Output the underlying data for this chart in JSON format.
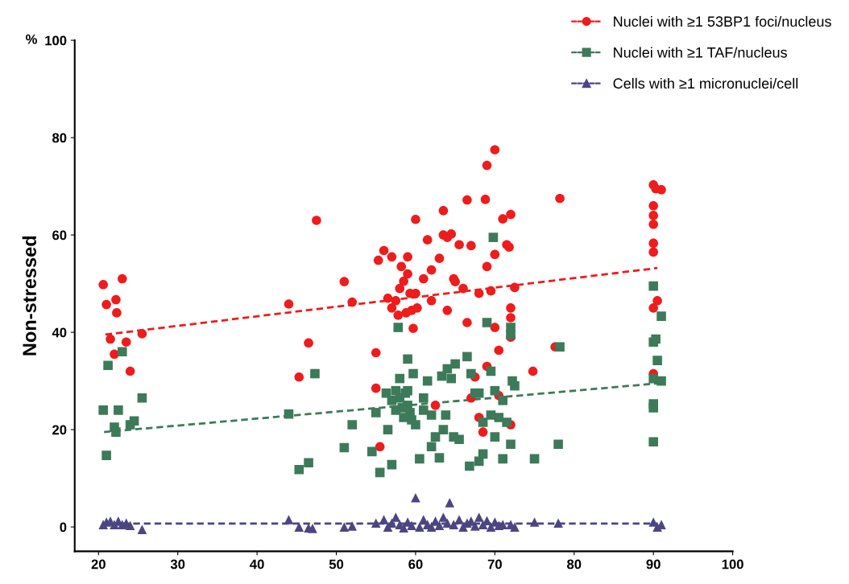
{
  "chart_data": {
    "type": "scatter",
    "ylabel": "Non-stressed",
    "annotations": [
      "%"
    ],
    "xlim": [
      17,
      100
    ],
    "xticks": [
      20,
      30,
      40,
      50,
      60,
      70,
      80,
      90,
      100
    ],
    "ylim": [
      -5,
      100
    ],
    "yticks": [
      0,
      20,
      40,
      60,
      80,
      100
    ],
    "grid": false,
    "legend": "top right",
    "series": [
      {
        "name": "Nuclei with ≥1 53BP1 foci/nucleus",
        "color": "#ee1c1c",
        "marker": "circle",
        "line_style": "dashed",
        "x": [
          20.6,
          21,
          21.5,
          22,
          22.2,
          22.3,
          23,
          23.5,
          24,
          25.5,
          44,
          45.3,
          46.5,
          47.5,
          51,
          52,
          55,
          55,
          55.3,
          55.5,
          56,
          56.5,
          57,
          57,
          57.5,
          57.8,
          58,
          58.2,
          58.5,
          58.8,
          59,
          59,
          59.3,
          59.5,
          59.7,
          60,
          60,
          60.2,
          61,
          61.5,
          62,
          62,
          62.5,
          63,
          63.5,
          63.5,
          64,
          64,
          64.5,
          64.8,
          65,
          65.5,
          66,
          66.5,
          66.5,
          67,
          67,
          67.5,
          68,
          68,
          68.5,
          68.8,
          69,
          69,
          69,
          69.5,
          70,
          70,
          70,
          70.5,
          70.5,
          71,
          71.5,
          71.8,
          72,
          72,
          72,
          72,
          72,
          72.5,
          74.8,
          77.6,
          78.2,
          90,
          90.3,
          90,
          90,
          90,
          90,
          90,
          90.5,
          90,
          90,
          91
        ],
        "values": [
          49.8,
          45.7,
          38.6,
          35.5,
          46.7,
          44,
          51,
          38,
          32,
          39.7,
          45.8,
          30.8,
          37.8,
          63,
          50.4,
          46.2,
          35.8,
          28.5,
          54.8,
          16.5,
          56.8,
          47,
          55.5,
          45,
          46.5,
          43.5,
          49,
          53.5,
          50.5,
          44,
          55.5,
          52,
          48,
          44.5,
          40.8,
          63.2,
          48,
          45,
          51,
          59,
          46.5,
          52.8,
          25,
          55.2,
          65,
          60,
          59.5,
          44.5,
          60.2,
          51,
          50.4,
          58,
          49,
          67.2,
          42,
          57.8,
          26.5,
          30.8,
          48,
          22.5,
          19.5,
          67.3,
          74.3,
          53.5,
          33,
          48.5,
          77.5,
          56,
          41,
          36.3,
          27,
          63.3,
          58,
          57.5,
          64.2,
          45,
          43,
          39,
          21,
          49.2,
          32,
          37,
          67.5,
          70.3,
          69.5,
          66,
          64,
          62.2,
          58.3,
          56.5,
          46.5,
          45,
          31.5,
          69.3
        ]
      },
      {
        "name": "Nuclei with ≥1 TAF/nucleus",
        "color": "#3d7a5a",
        "marker": "square",
        "line_style": "dashed",
        "x": [
          20.6,
          21,
          21.2,
          22,
          22.2,
          22.5,
          23,
          24,
          24.5,
          25.5,
          44,
          45.3,
          46.5,
          47.3,
          51,
          52,
          54.5,
          55,
          55.5,
          56.3,
          56.5,
          57,
          57,
          57.5,
          57.5,
          57.8,
          58,
          58,
          58.3,
          58.5,
          58.7,
          59,
          59,
          59,
          59.3,
          59.5,
          59.7,
          60,
          60.5,
          61,
          61,
          61.5,
          62,
          62,
          62.5,
          63,
          63.3,
          63.5,
          63.8,
          64,
          64.5,
          64.8,
          65,
          65.5,
          66.5,
          66.8,
          67,
          67.5,
          68,
          68,
          68.5,
          68.5,
          69,
          69.5,
          69.5,
          69.8,
          70,
          70,
          70.5,
          71,
          71,
          71.5,
          72,
          72,
          72,
          72.2,
          72.5,
          75,
          78.2,
          78,
          90,
          90,
          90.3,
          90.5,
          90,
          91,
          90,
          90,
          90,
          91
        ],
        "values": [
          24,
          14.7,
          33.2,
          20.5,
          19.5,
          24,
          36,
          21,
          21.8,
          26.5,
          23.2,
          11.8,
          13.2,
          31.5,
          16.3,
          21,
          15.5,
          23.5,
          11.2,
          27.5,
          20,
          26,
          12.8,
          28,
          24,
          41,
          30.5,
          26.5,
          24.5,
          22.5,
          27.5,
          34.5,
          28,
          25,
          23.5,
          22,
          31.5,
          21,
          14,
          26.5,
          24,
          30,
          16.5,
          23,
          18.5,
          14.2,
          31,
          20,
          23,
          32.5,
          30.5,
          18.5,
          33.5,
          18,
          35,
          12.5,
          31.5,
          27.5,
          27.5,
          13.5,
          21.5,
          15,
          42,
          32,
          23,
          59.5,
          28,
          18.5,
          22.5,
          14,
          26,
          21.5,
          41,
          39.5,
          17,
          30,
          29,
          14,
          37,
          17,
          49.5,
          38,
          38.6,
          34.2,
          30.5,
          43.3,
          25.3,
          24.5,
          17.5,
          30
        ]
      },
      {
        "name": "Cells with ≥1 micronuclei/cell",
        "color": "#4b4682",
        "marker": "triangle",
        "line_style": "dashed",
        "x": [
          20.6,
          21,
          21.5,
          22,
          22.5,
          23,
          23.5,
          24,
          25.5,
          44,
          45.3,
          46.5,
          47,
          51,
          52,
          55,
          56,
          56.5,
          57,
          57.5,
          58,
          58.5,
          59,
          59.5,
          60,
          60.5,
          61,
          61.5,
          62,
          62.5,
          63,
          63.5,
          64,
          64.3,
          64.8,
          65.5,
          66,
          66.5,
          67,
          67.5,
          68,
          68.5,
          69,
          69.5,
          70,
          70.5,
          71,
          72,
          72.5,
          75,
          78,
          90,
          90.5,
          91
        ],
        "values": [
          0.5,
          1,
          1.2,
          0.5,
          1.2,
          0.5,
          0.8,
          0.3,
          -0.5,
          1.5,
          0,
          -0.2,
          -0.3,
          0,
          0.2,
          0.8,
          1.5,
          0,
          0.8,
          2,
          0.5,
          -0.2,
          1,
          0.3,
          6,
          0,
          1.5,
          0.5,
          0,
          1.2,
          0.3,
          2,
          0.8,
          5,
          0.5,
          1.5,
          0,
          0.8,
          1.2,
          0.2,
          2,
          0.5,
          1.3,
          0,
          1,
          0.3,
          0.5,
          0.5,
          0,
          1,
          0.8,
          1,
          0,
          0.5
        ]
      },
      {
        "type": "line",
        "color": "#ee1c1c",
        "line_style": "dashed",
        "x": [
          20.7,
          90.5
        ],
        "values": [
          39.5,
          53.2
        ]
      },
      {
        "type": "line",
        "color": "#3d7a5a",
        "line_style": "dashed",
        "x": [
          20.7,
          90.5
        ],
        "values": [
          19.5,
          29.5
        ]
      },
      {
        "type": "line",
        "color": "#4b4682",
        "line_style": "dashed",
        "x": [
          20.7,
          90.5
        ],
        "values": [
          0.7,
          0.7
        ]
      }
    ]
  }
}
